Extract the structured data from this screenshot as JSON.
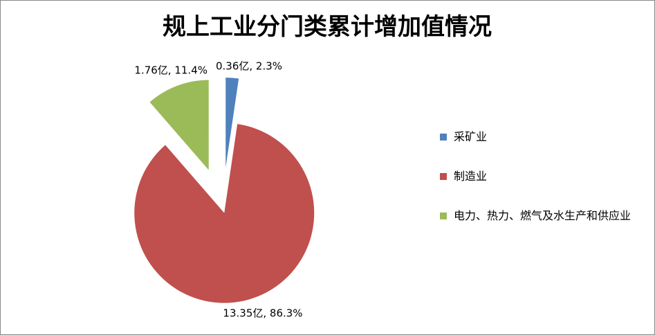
{
  "chart_data": {
    "type": "pie",
    "title": "规上工业分门类累计增加值情况",
    "categories": [
      "采矿业",
      "制造业",
      "电力、热力、燃气及水生产和供应业"
    ],
    "values": [
      0.36,
      13.35,
      1.76
    ],
    "value_labels": [
      "0.36亿, 2.3%",
      "13.35亿, 86.3%",
      "1.76亿, 11.4%"
    ],
    "colors": [
      "#4f81bd",
      "#c0504d",
      "#9bbb59"
    ],
    "legend": "right"
  }
}
